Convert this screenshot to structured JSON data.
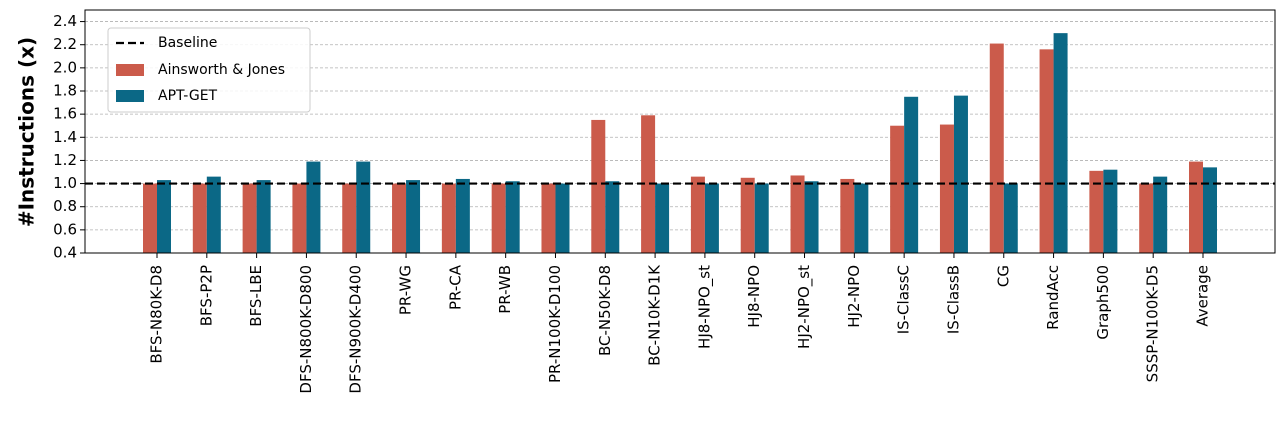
{
  "chart_data": {
    "type": "bar",
    "y_label": "#Instructions (x)",
    "categories": [
      "BFS-N80K-D8",
      "BFS-P2P",
      "BFS-LBE",
      "DFS-N800K-D800",
      "DFS-N900K-D400",
      "PR-WG",
      "PR-CA",
      "PR-WB",
      "PR-N100K-D100",
      "BC-N50K-D8",
      "BC-N10K-D1K",
      "HJ8-NPO_st",
      "HJ8-NPO",
      "HJ2-NPO_st",
      "HJ2-NPO",
      "IS-ClassC",
      "IS-ClassB",
      "CG",
      "RandAcc",
      "Graph500",
      "SSSP-N100K-D5",
      "Average"
    ],
    "baseline": {
      "name": "Baseline",
      "value": 1,
      "color": "#000000"
    },
    "series": [
      {
        "name": "Ainsworth & Jones",
        "color": "#cb5b4b",
        "values": [
          1.0,
          1.0,
          1.0,
          1.0,
          1.0,
          1.0,
          1.0,
          1.0,
          1.0,
          1.55,
          1.59,
          1.06,
          1.05,
          1.07,
          1.04,
          1.5,
          1.51,
          2.21,
          2.16,
          1.11,
          1.0,
          1.19
        ]
      },
      {
        "name": "APT-GET",
        "color": "#0b6886",
        "values": [
          1.03,
          1.06,
          1.03,
          1.19,
          1.19,
          1.03,
          1.04,
          1.02,
          1.0,
          1.02,
          1.0,
          1.0,
          1.0,
          1.02,
          1.0,
          1.75,
          1.76,
          1.0,
          2.3,
          1.12,
          1.06,
          1.14
        ]
      }
    ],
    "ylim": [
      0.4,
      2.5
    ],
    "yticks": [
      0.4,
      0.6,
      0.8,
      {
        "value": 1,
        "label": "1.0"
      },
      1.2,
      1.4,
      1.6,
      1.8,
      {
        "value": 2,
        "label": "2.0"
      },
      2.2,
      2.4
    ],
    "grid": true,
    "legend": "upper left"
  }
}
